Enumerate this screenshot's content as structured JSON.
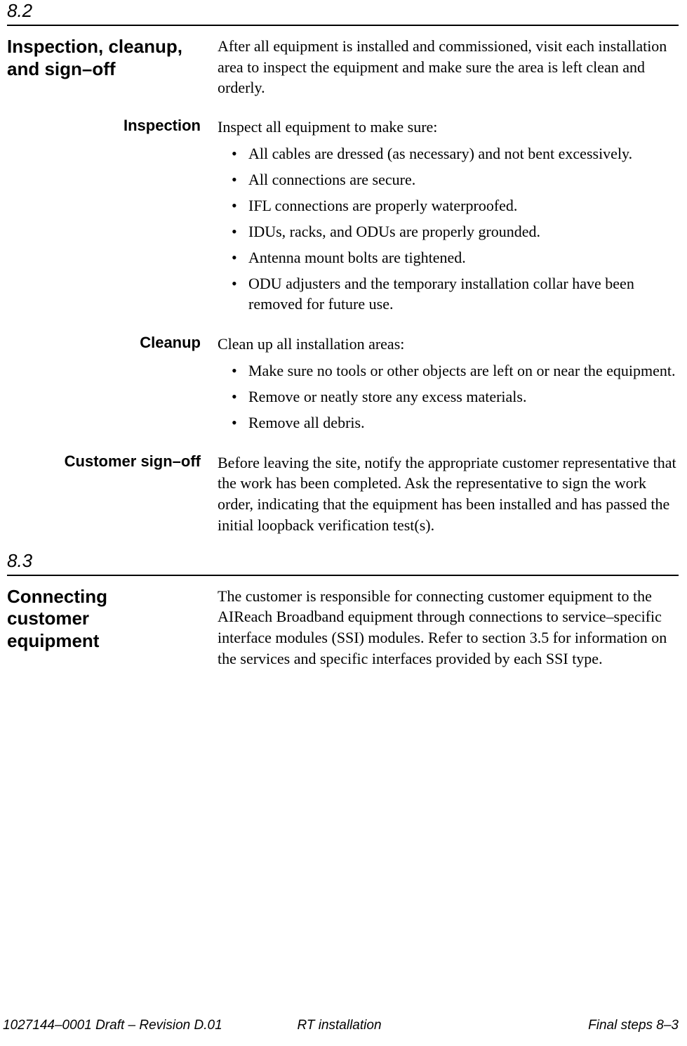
{
  "section1": {
    "number": "8.2",
    "title_line1": "Inspection, cleanup,",
    "title_line2": "and sign–off",
    "intro": "After all equipment is installed and commissioned, visit each installation area to inspect the equipment and make sure the area is left clean and orderly.",
    "inspection": {
      "heading": "Inspection",
      "lead": "Inspect all equipment to make sure:",
      "items": {
        "b0": "All cables are dressed (as necessary) and not bent excessively.",
        "b1": "All connections are secure.",
        "b2": "IFL connections are properly waterproofed.",
        "b3": "IDUs, racks, and ODUs are properly grounded.",
        "b4": "Antenna mount bolts are tightened.",
        "b5": "ODU adjusters and the temporary installation collar have been removed for future use."
      }
    },
    "cleanup": {
      "heading": "Cleanup",
      "lead": "Clean up all installation areas:",
      "items": {
        "b0": "Make sure no tools or other objects are left on or near the equipment.",
        "b1": "Remove or neatly store any excess materials.",
        "b2": "Remove all debris."
      }
    },
    "signoff": {
      "heading": "Customer sign–off",
      "body": "Before leaving the site, notify the appropriate customer representative that the work has been completed. Ask the representative to sign the work order, indicating that the equipment has been installed and has passed the initial loopback verification test(s)."
    }
  },
  "section2": {
    "number": "8.3",
    "title_line1": "Connecting",
    "title_line2": "customer",
    "title_line3": "equipment",
    "body": "The customer is responsible for connecting customer equipment to the AIReach Broadband equipment through connections to service–specific interface modules (SSI) modules. Refer to section 3.5 for information on the services and specific interfaces provided by each SSI type."
  },
  "footer": {
    "left": "1027144–0001  Draft – Revision D.01",
    "center": "RT installation",
    "right": "Final steps   8–3"
  }
}
